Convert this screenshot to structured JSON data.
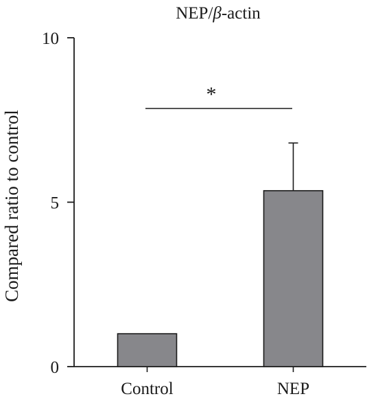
{
  "chart_data": {
    "type": "bar",
    "title_prefix": "NEP/",
    "title_italic": "β",
    "title_suffix": "-actin",
    "ylabel": "Compared ratio to control",
    "xlabel": "",
    "categories": [
      "Control",
      "NEP"
    ],
    "values": [
      1.0,
      5.35
    ],
    "error_upper": [
      0.0,
      1.45
    ],
    "ylim": [
      0,
      10
    ],
    "yticks": [
      0,
      5,
      10
    ],
    "ytick_labels": [
      "0",
      "5",
      "10"
    ],
    "significance": {
      "label": "*",
      "between": [
        "Control",
        "NEP"
      ]
    },
    "bar_color": "#87878b",
    "grid": false,
    "legend": "none"
  }
}
